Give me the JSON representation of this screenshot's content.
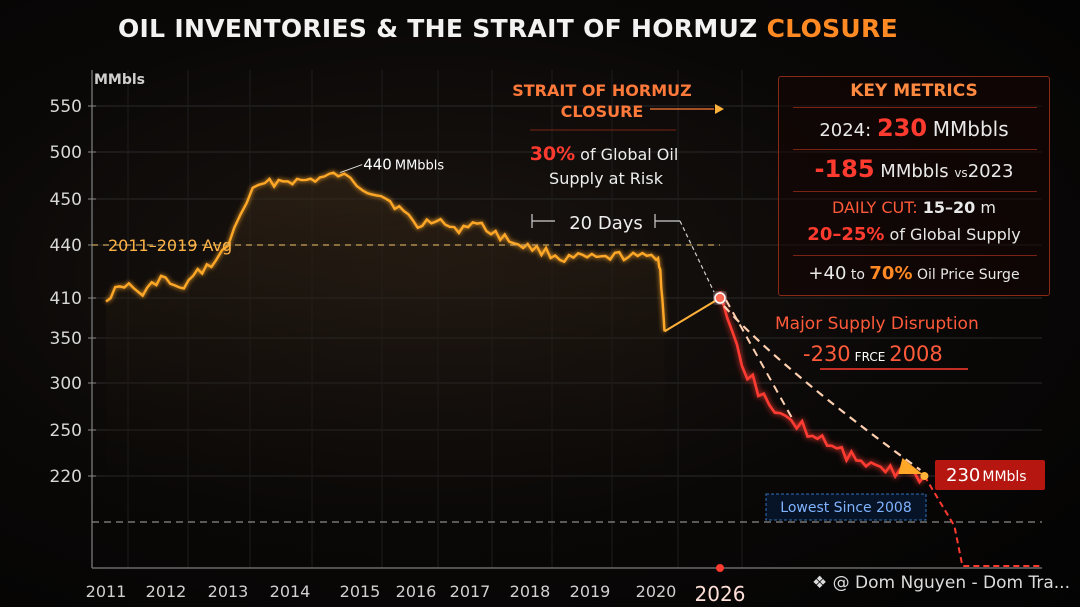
{
  "title": {
    "main": "OIL INVENTORIES & THE STRAIT OF HORMUZ",
    "accent": "CLOSURE",
    "accent_color": "#ff8a24"
  },
  "chart_data": {
    "type": "line",
    "ylabel": "MMbls",
    "y_ticks": [
      550,
      500,
      450,
      440,
      410,
      350,
      300,
      250,
      220
    ],
    "y_axis_note": "tick labels are non-uniform as printed; values below are expressed in tick-index positions mapped to labelled ticks",
    "x_ticks": [
      "2011",
      "2012",
      "2013",
      "2014",
      "2015",
      "2016",
      "2017",
      "2018",
      "2019",
      "2020",
      "2026"
    ],
    "grid": true,
    "series": [
      {
        "color": "#ffa726",
        "points": [
          [
            2011.0,
            410
          ],
          [
            2011.3,
            418
          ],
          [
            2011.6,
            412
          ],
          [
            2011.9,
            422
          ],
          [
            2012.2,
            414
          ],
          [
            2012.5,
            424
          ],
          [
            2012.8,
            431
          ],
          [
            2013.0,
            440
          ],
          [
            2013.2,
            447
          ],
          [
            2013.4,
            458
          ],
          [
            2013.6,
            466
          ],
          [
            2013.9,
            470
          ],
          [
            2014.2,
            469
          ],
          [
            2014.5,
            472
          ],
          [
            2014.8,
            476
          ],
          [
            2015.0,
            470
          ],
          [
            2015.2,
            462
          ],
          [
            2015.5,
            455
          ],
          [
            2015.8,
            448
          ],
          [
            2016.1,
            444
          ],
          [
            2016.4,
            446
          ],
          [
            2016.7,
            443
          ],
          [
            2017.0,
            445
          ],
          [
            2017.3,
            443
          ],
          [
            2017.6,
            441
          ],
          [
            2017.9,
            439
          ],
          [
            2018.2,
            436
          ],
          [
            2018.5,
            432
          ],
          [
            2018.8,
            433
          ],
          [
            2019.1,
            432
          ],
          [
            2019.4,
            434
          ],
          [
            2019.7,
            433
          ],
          [
            2020.0,
            434
          ],
          [
            2020.2,
            432
          ],
          [
            2020.4,
            425
          ],
          [
            2020.6,
            410
          ],
          [
            2020.8,
            360
          ]
        ]
      },
      {
        "color": "#ff3b30",
        "points": [
          [
            2026.0,
            410
          ],
          [
            2026.1,
            370
          ],
          [
            2026.3,
            320
          ],
          [
            2026.6,
            285
          ],
          [
            2026.9,
            260
          ],
          [
            2027.2,
            250
          ],
          [
            2027.6,
            238
          ],
          [
            2028.0,
            228
          ],
          [
            2028.4,
            223
          ],
          [
            2028.8,
            220
          ]
        ]
      }
    ],
    "annotations": [
      {
        "text": "440 MMbbls",
        "x": 2014.8,
        "y": 476
      },
      {
        "text": "2011–2019 Avg",
        "y": 440
      },
      {
        "text": "20 Days"
      },
      {
        "text": "Major Supply Disruption"
      },
      {
        "text": "-230 FRCE 2008"
      },
      {
        "text": "230MMbls",
        "x": 2028.8,
        "y": 220
      },
      {
        "text": "Lowest Since 2008"
      }
    ]
  },
  "hormuz": {
    "title_line1": "STRAIT OF HORMUZ",
    "title_line2": "CLOSURE",
    "pct": "30%",
    "pct_rest": "of Global Oil",
    "line2": "Supply at Risk"
  },
  "labels": {
    "peak_value": "440",
    "peak_unit": "MMbbls",
    "avg": "2011–2019 Avg",
    "days": "20 Days",
    "disruption": "Major Supply Disruption",
    "disruption_a": "-230",
    "disruption_b": "FRCE",
    "disruption_c": "2008",
    "end_value": "230",
    "end_unit": "MMbls",
    "lowest": "Lowest Since 2008"
  },
  "key_metrics": {
    "title": "KEY METRICS",
    "row1_a": "2024:",
    "row1_b": "230",
    "row1_c": "MMbbls",
    "row2_a": "-185",
    "row2_b": "MMbbls",
    "row2_c": "vs",
    "row2_d": "2023",
    "row3_a": "DAILY CUT:",
    "row3_b": "15–20",
    "row3_c": "m",
    "row4_a": "20–25%",
    "row4_b": "of Global Supply",
    "row5_a": "+40",
    "row5_b": "to",
    "row5_c": "70%",
    "row5_d": "Oil Price Surge"
  },
  "watermark": "@ Dom Nguyen - Dom Tra...",
  "watermark_icon": "diamond-logo-icon"
}
